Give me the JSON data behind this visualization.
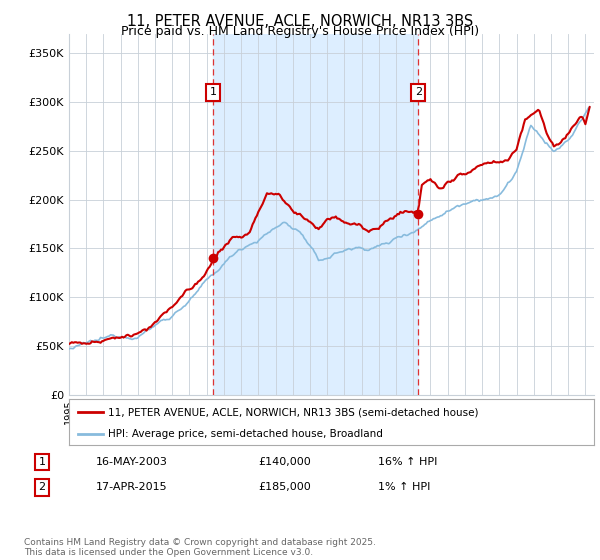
{
  "title": "11, PETER AVENUE, ACLE, NORWICH, NR13 3BS",
  "subtitle": "Price paid vs. HM Land Registry's House Price Index (HPI)",
  "title_fontsize": 10.5,
  "subtitle_fontsize": 9,
  "background_color": "#ffffff",
  "shaded_region_color": "#ddeeff",
  "grid_color": "#c8d0d8",
  "hpi_line_color": "#88bbdd",
  "price_line_color": "#cc0000",
  "marker_color": "#cc0000",
  "dashed_line_color": "#dd3333",
  "ylim": [
    0,
    370000
  ],
  "yticks": [
    0,
    50000,
    100000,
    150000,
    200000,
    250000,
    300000,
    350000
  ],
  "ytick_labels": [
    "£0",
    "£50K",
    "£100K",
    "£150K",
    "£200K",
    "£250K",
    "£300K",
    "£350K"
  ],
  "sale1_price": 140000,
  "sale1_x": 2003.37,
  "sale2_price": 185000,
  "sale2_x": 2015.29,
  "legend_entry1": "11, PETER AVENUE, ACLE, NORWICH, NR13 3BS (semi-detached house)",
  "legend_entry2": "HPI: Average price, semi-detached house, Broadland",
  "footer_text": "Contains HM Land Registry data © Crown copyright and database right 2025.\nThis data is licensed under the Open Government Licence v3.0.",
  "table_row1": [
    "1",
    "16-MAY-2003",
    "£140,000",
    "16% ↑ HPI"
  ],
  "table_row2": [
    "2",
    "17-APR-2015",
    "£185,000",
    "1% ↑ HPI"
  ]
}
